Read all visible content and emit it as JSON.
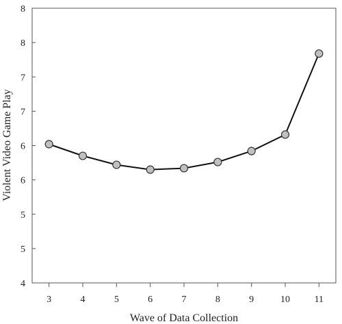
{
  "chart_data": {
    "type": "line",
    "title": "",
    "xlabel": "Wave of Data Collection",
    "ylabel": "Violent Video Game Play",
    "x": [
      3,
      4,
      5,
      6,
      7,
      8,
      9,
      10,
      11
    ],
    "series": [
      {
        "values": [
          6.02,
          5.85,
          5.72,
          5.65,
          5.67,
          5.76,
          5.92,
          6.16,
          7.34
        ]
      }
    ],
    "x_ticks": [
      "3",
      "4",
      "5",
      "6",
      "7",
      "8",
      "9",
      "10",
      "11"
    ],
    "y_ticks": [
      4,
      4.5,
      5,
      5.5,
      6,
      6.5,
      7,
      7.5,
      8
    ],
    "y_tick_labels": [
      "4",
      "5",
      "5",
      "6",
      "6",
      "7",
      "7",
      "8",
      "8"
    ],
    "xlim": [
      2.5,
      11.5
    ],
    "ylim": [
      4,
      8
    ],
    "grid": false,
    "colors": {
      "line": "#111111",
      "marker_fill": "#c0c0c0",
      "marker_stroke": "#333333"
    }
  }
}
